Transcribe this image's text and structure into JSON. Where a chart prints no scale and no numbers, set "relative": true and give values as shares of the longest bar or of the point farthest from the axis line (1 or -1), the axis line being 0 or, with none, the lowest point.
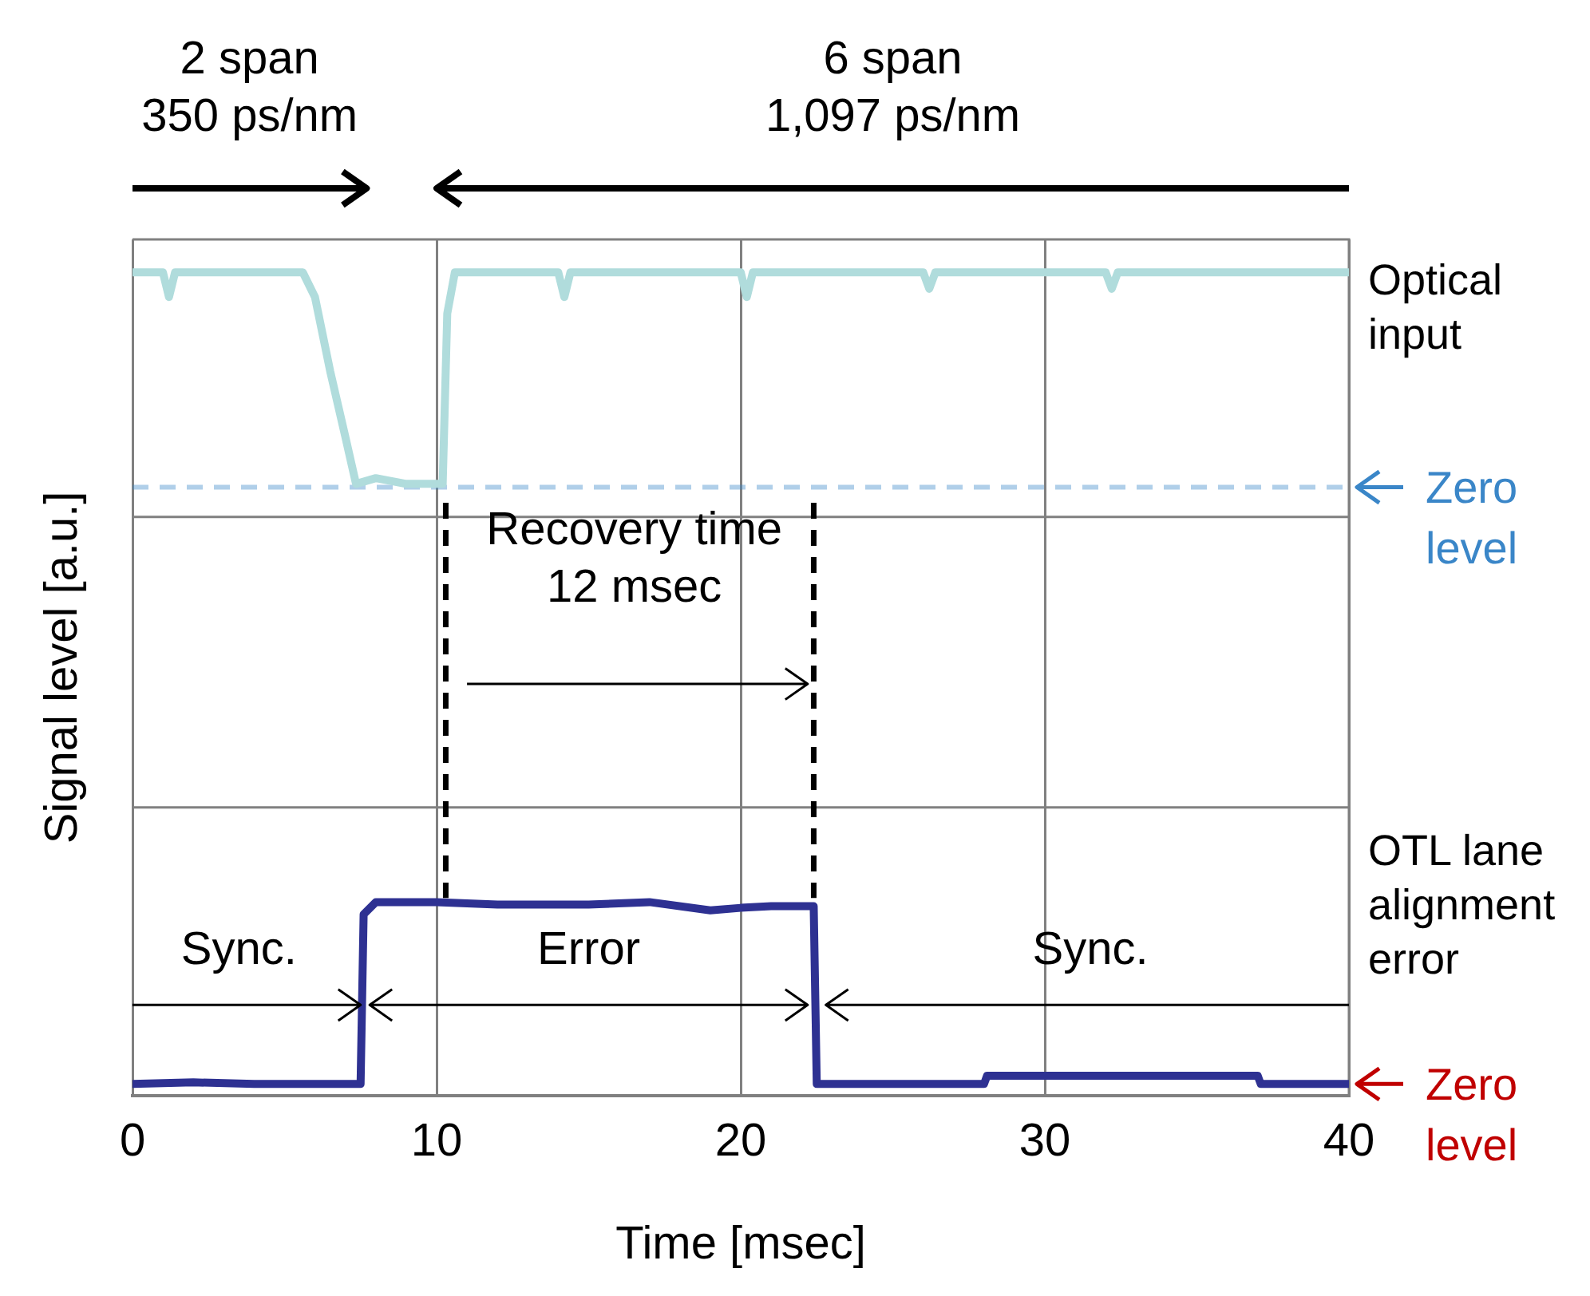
{
  "chart_data": {
    "type": "line",
    "relative": true,
    "xlabel": "Time [msec]",
    "ylabel": "Signal level [a.u.]",
    "xlim": [
      0,
      40
    ],
    "xticks": [
      0,
      10,
      20,
      30,
      40
    ],
    "grid": "x",
    "series": [
      {
        "name": "Optical input",
        "color": "#b0dcdc",
        "x": [
          0,
          1,
          1.2,
          1.4,
          5.6,
          6,
          6.5,
          7,
          7.35,
          8,
          9,
          10.2,
          10.35,
          10.6,
          14,
          14.2,
          14.4,
          20,
          20.2,
          20.4,
          26,
          26.2,
          26.4,
          32,
          32.2,
          32.4,
          40
        ],
        "values": [
          1,
          1,
          0.97,
          1,
          1,
          0.97,
          0.88,
          0.8,
          0.743,
          0.75,
          0.743,
          0.743,
          0.95,
          1,
          1,
          0.97,
          1,
          1,
          0.97,
          1,
          1,
          0.98,
          1,
          1,
          0.98,
          1,
          1
        ]
      },
      {
        "name": "OTL lane alignment error",
        "color": "#2e3192",
        "x": [
          0,
          2,
          4,
          7.5,
          7.6,
          8,
          10,
          12,
          15,
          17,
          19,
          20,
          21,
          22.4,
          22.5,
          24,
          28,
          28.1,
          37,
          37.1,
          40
        ],
        "values": [
          0.014,
          0.016,
          0.014,
          0.014,
          0.22,
          0.235,
          0.235,
          0.232,
          0.232,
          0.235,
          0.225,
          0.228,
          0.23,
          0.23,
          0.014,
          0.014,
          0.014,
          0.024,
          0.024,
          0.014,
          0.014
        ]
      }
    ],
    "ref_lines": [
      {
        "axis": "y",
        "value": 0.739,
        "label": "Zero level",
        "color": "#3a86c8",
        "line_style": "dashed"
      },
      {
        "axis": "y",
        "value": 0.014,
        "label": "Zero level",
        "color": "#c00000"
      },
      {
        "axis": "y",
        "value": 0.703,
        "color": "#808080",
        "line_style": "solid"
      },
      {
        "axis": "y",
        "value": 0.35,
        "color": "#808080",
        "line_style": "solid"
      },
      {
        "axis": "x",
        "value": 10.3,
        "color": "#000000",
        "line_style": "dashed"
      },
      {
        "axis": "x",
        "value": 22.4,
        "color": "#000000",
        "line_style": "dashed"
      }
    ],
    "annotations": [
      "2 span\n350 ps/nm",
      "6 span\n1,097 ps/nm",
      "Recovery time\n12 msec",
      "Sync.",
      "Error",
      "Sync."
    ]
  }
}
